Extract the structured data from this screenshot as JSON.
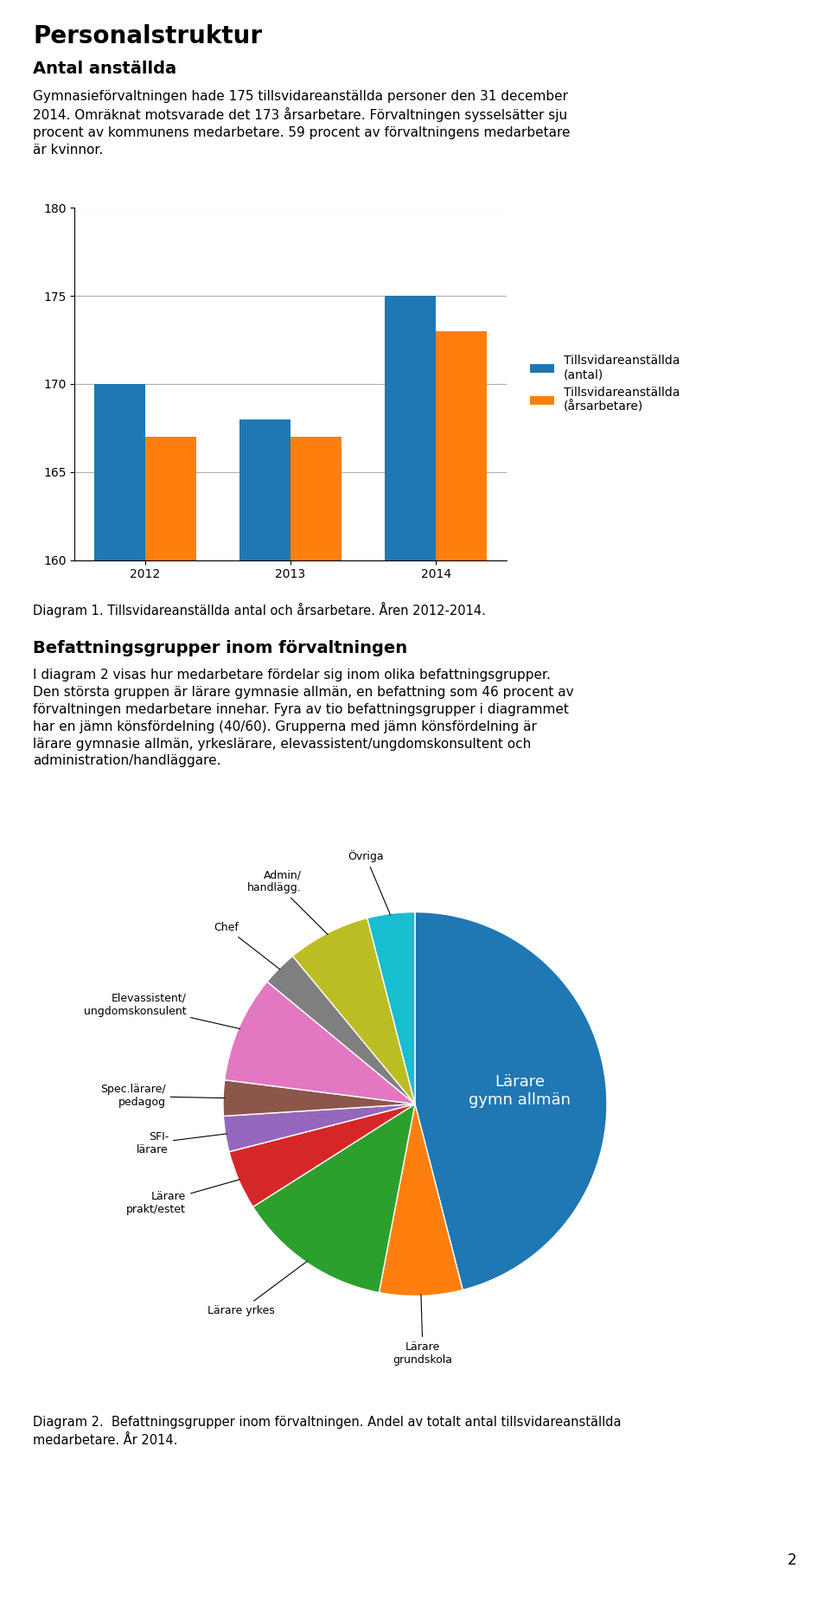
{
  "title": "Personalstruktur",
  "page_number": "2",
  "chart_data": [
    {
      "type": "bar",
      "subtitle": "Antal anställda",
      "text": "Gymnasieförvaltningen hade 175 tillsvidareanställda personer den 31 december\n2014. Omräknat motsvarade det 173 årsarbetare. Förvaltningen sysselsätter sju\nprocent av kommunens medarbetare. 59 procent av förvaltningens medarbetare\när kvinnor.",
      "caption": "Diagram 1. Tillsvidareanställda antal och årsarbetare. Åren 2012-2014.",
      "categories": [
        "2012",
        "2013",
        "2014"
      ],
      "series": [
        {
          "name": "Tillsvidareanställda\n(antal)",
          "values": [
            170,
            168,
            175
          ]
        },
        {
          "name": "Tillsvidareanställda\n(årsarbetare)",
          "values": [
            167,
            167,
            173
          ]
        }
      ],
      "ylim": [
        160,
        180
      ],
      "yticks": [
        160,
        165,
        170,
        175,
        180
      ],
      "grid": true,
      "legend": "right"
    },
    {
      "type": "pie",
      "subtitle": "Befattningsgrupper inom förvaltningen",
      "text": "I diagram 2 visas hur medarbetare fördelar sig inom olika befattningsgrupper.\nDen största gruppen är lärare gymnasie allmän, en befattning som 46 procent av\nförvaltningen medarbetare innehar. Fyra av tio befattningsgrupper i diagrammet\nhar en jämn könsfördelning (40/60). Grupperna med jämn könsfördelning är\nlärare gymnasie allmän, yrkeslärare, elevassistent/ungdomskonsultent och\nadministration/handläggare.",
      "caption": "Diagram 2.  Befattningsgrupper inom förvaltningen. Andel av totalt antal tillsvidareanställda\nmedarbetare. År 2014.",
      "categories": [
        "Lärare\ngymn allmän",
        "Lärare\ngrundskola",
        "Lärare yrkes",
        "Lärare\nprakt/estet",
        "SFI-\nlärare",
        "Spec.lärare/\npedagog",
        "Elevassistent/\nungdomskonsulent",
        "Chef",
        "Admin/\nhandlägg.",
        "Övriga"
      ],
      "values": [
        46,
        7,
        13,
        5,
        3,
        3,
        9,
        3,
        7,
        4
      ]
    }
  ]
}
